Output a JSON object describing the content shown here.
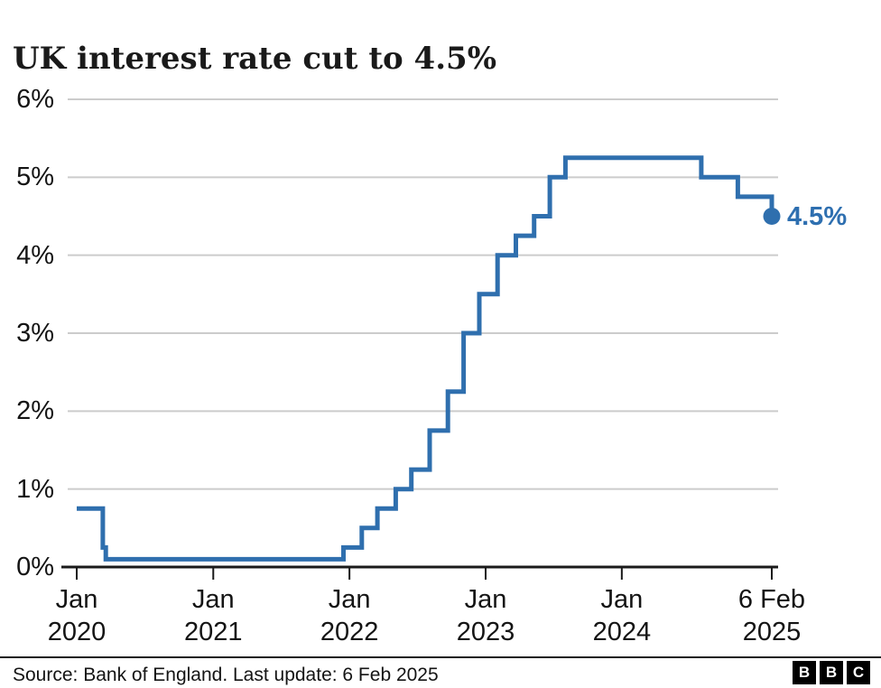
{
  "title": "UK interest rate cut to 4.5%",
  "footer": {
    "source": "Source: Bank of England. Last update: 6 Feb 2025",
    "logo_letters": [
      "B",
      "B",
      "C"
    ]
  },
  "chart_data": {
    "type": "line",
    "subtype": "step-after",
    "title": "UK interest rate cut to 4.5%",
    "series_name": "UK interest rate",
    "xlabel": "",
    "ylabel": "",
    "ylim": [
      0,
      6
    ],
    "grid": "horizontal",
    "legend_position": "none",
    "yticks": [
      {
        "value": 6,
        "label": "6%"
      },
      {
        "value": 5,
        "label": "5%"
      },
      {
        "value": 4,
        "label": "4%"
      },
      {
        "value": 3,
        "label": "3%"
      },
      {
        "value": 2,
        "label": "2%"
      },
      {
        "value": 1,
        "label": "1%"
      },
      {
        "value": 0,
        "label": "0%"
      }
    ],
    "xticks": [
      {
        "date": "2020-01-01",
        "line1": "Jan",
        "line2": "2020"
      },
      {
        "date": "2021-01-01",
        "line1": "Jan",
        "line2": "2021"
      },
      {
        "date": "2022-01-01",
        "line1": "Jan",
        "line2": "2022"
      },
      {
        "date": "2023-01-01",
        "line1": "Jan",
        "line2": "2023"
      },
      {
        "date": "2024-01-01",
        "line1": "Jan",
        "line2": "2024"
      },
      {
        "date": "2025-02-06",
        "line1": "6 Feb",
        "line2": "2025"
      }
    ],
    "x_range": [
      "2020-01-01",
      "2025-02-06"
    ],
    "points": [
      {
        "date": "2020-01-01",
        "value": 0.75
      },
      {
        "date": "2020-03-11",
        "value": 0.25
      },
      {
        "date": "2020-03-19",
        "value": 0.1
      },
      {
        "date": "2021-12-16",
        "value": 0.25
      },
      {
        "date": "2022-02-03",
        "value": 0.5
      },
      {
        "date": "2022-03-17",
        "value": 0.75
      },
      {
        "date": "2022-05-05",
        "value": 1.0
      },
      {
        "date": "2022-06-16",
        "value": 1.25
      },
      {
        "date": "2022-08-04",
        "value": 1.75
      },
      {
        "date": "2022-09-22",
        "value": 2.25
      },
      {
        "date": "2022-11-03",
        "value": 3.0
      },
      {
        "date": "2022-12-15",
        "value": 3.5
      },
      {
        "date": "2023-02-02",
        "value": 4.0
      },
      {
        "date": "2023-03-23",
        "value": 4.25
      },
      {
        "date": "2023-05-11",
        "value": 4.5
      },
      {
        "date": "2023-06-22",
        "value": 5.0
      },
      {
        "date": "2023-08-03",
        "value": 5.25
      },
      {
        "date": "2024-08-01",
        "value": 5.0
      },
      {
        "date": "2024-11-07",
        "value": 4.75
      },
      {
        "date": "2025-02-06",
        "value": 4.5
      }
    ],
    "end_label": "4.5%",
    "end_marker": true,
    "colors": {
      "line": "#2f6fae",
      "marker": "#2f6fae",
      "end_label": "#2e6fb0",
      "grid": "#cccccc",
      "axis": "#1a1a1a",
      "text": "#141414"
    }
  }
}
